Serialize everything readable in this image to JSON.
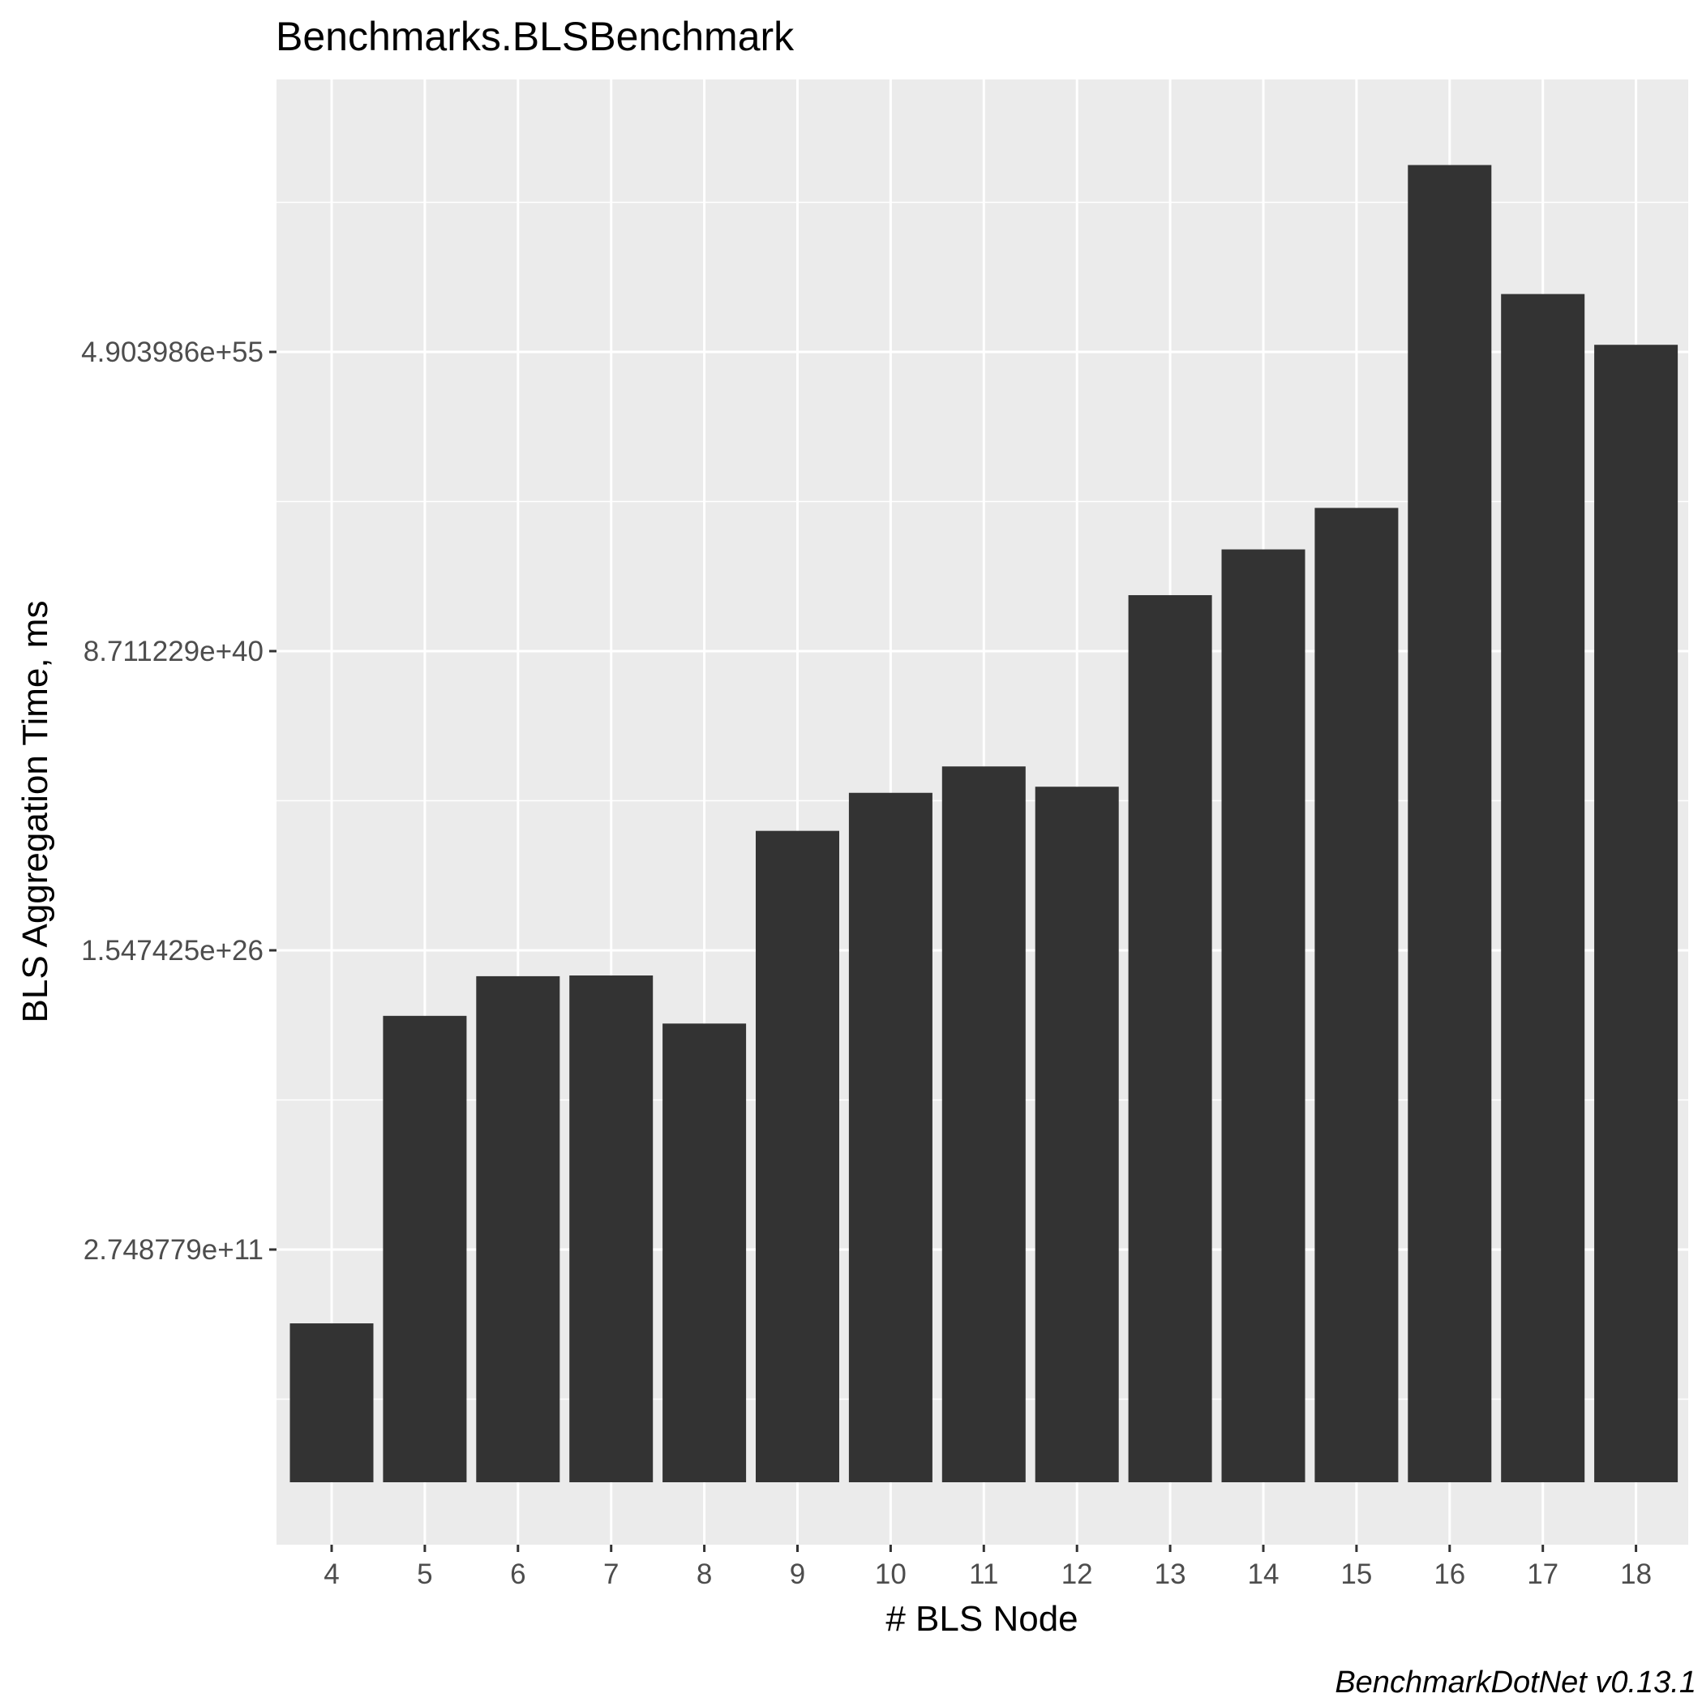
{
  "chart_data": {
    "type": "bar",
    "title": "Benchmarks.BLSBenchmark",
    "xlabel": "# BLS Node",
    "ylabel": "BLS Aggregation Time, ms",
    "caption": "BenchmarkDotNet v0.13.1",
    "y_scale": "log2",
    "categories": [
      "4",
      "5",
      "6",
      "7",
      "8",
      "9",
      "10",
      "11",
      "12",
      "13",
      "14",
      "15",
      "16",
      "17",
      "18"
    ],
    "values": [
      63000000.0,
      9.1e+22,
      8.2e+24,
      8.9e+24,
      3.8e+22,
      1.2e+32,
      9e+33,
      1.8e+35,
      1.8e+34,
      5e+43,
      9e+45,
      1e+48,
      8e+64,
      3.5e+58,
      1.1e+56
    ],
    "y_ticks": [
      {
        "label": "2.748779e+11",
        "value": 274877900000.0
      },
      {
        "label": "1.547425e+26",
        "value": 1.547425e+26
      },
      {
        "label": "8.711229e+40",
        "value": 8.711229e+40
      },
      {
        "label": "4.903986e+55",
        "value": 4.903986e+55
      }
    ],
    "bar_color": "#333333",
    "panel_color": "#ebebeb",
    "grid": true,
    "legend": "none"
  }
}
